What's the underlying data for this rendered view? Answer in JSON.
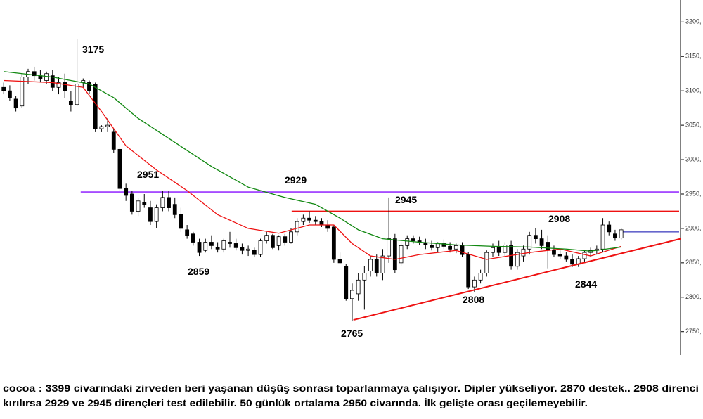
{
  "chart_data": {
    "type": "candlestick",
    "ylim": [
      2716,
      3232
    ],
    "xlim": [
      -0.6,
      110.7
    ],
    "yticks": [
      {
        "value": 2750,
        "label": "2750,"
      },
      {
        "value": 2800,
        "label": "2800,"
      },
      {
        "value": 2850,
        "label": "2850,"
      },
      {
        "value": 2900,
        "label": "2900,"
      },
      {
        "value": 2950,
        "label": "2950,"
      },
      {
        "value": 3000,
        "label": "3000,"
      },
      {
        "value": 3050,
        "label": "3050,"
      },
      {
        "value": 3100,
        "label": "3100,"
      },
      {
        "value": 3150,
        "label": "3150,"
      },
      {
        "value": 3200,
        "label": "3200,"
      }
    ],
    "ohlc": [
      [
        3105,
        3112,
        3095,
        3100
      ],
      [
        3100,
        3108,
        3085,
        3090
      ],
      [
        3088,
        3092,
        3070,
        3075
      ],
      [
        3078,
        3125,
        3075,
        3120
      ],
      [
        3120,
        3132,
        3110,
        3128
      ],
      [
        3128,
        3135,
        3115,
        3122
      ],
      [
        3122,
        3130,
        3112,
        3118
      ],
      [
        3115,
        3128,
        3110,
        3125
      ],
      [
        3122,
        3130,
        3100,
        3105
      ],
      [
        3105,
        3120,
        3095,
        3112
      ],
      [
        3112,
        3125,
        3090,
        3100
      ],
      [
        3085,
        3100,
        3070,
        3080
      ],
      [
        3080,
        3175,
        3078,
        3110
      ],
      [
        3112,
        3118,
        3105,
        3115
      ],
      [
        3112,
        3115,
        3095,
        3100
      ],
      [
        3110,
        3112,
        3040,
        3045
      ],
      [
        3045,
        3050,
        3040,
        3048
      ],
      [
        3048,
        3060,
        3040,
        3050
      ],
      [
        3040,
        3045,
        3010,
        3015
      ],
      [
        3015,
        3018,
        2955,
        2958
      ],
      [
        2958,
        2965,
        2940,
        2948
      ],
      [
        2950,
        2955,
        2920,
        2925
      ],
      [
        2925,
        2945,
        2918,
        2940
      ],
      [
        2938,
        2950,
        2930,
        2935
      ],
      [
        2930,
        2940,
        2905,
        2910
      ],
      [
        2910,
        2935,
        2900,
        2930
      ],
      [
        2930,
        2955,
        2925,
        2945
      ],
      [
        2945,
        2955,
        2925,
        2930
      ],
      [
        2935,
        2945,
        2915,
        2920
      ],
      [
        2920,
        2930,
        2895,
        2900
      ],
      [
        2898,
        2905,
        2885,
        2890
      ],
      [
        2892,
        2895,
        2875,
        2880
      ],
      [
        2880,
        2885,
        2860,
        2865
      ],
      [
        2868,
        2885,
        2865,
        2880
      ],
      [
        2880,
        2890,
        2870,
        2875
      ],
      [
        2872,
        2880,
        2865,
        2870
      ],
      [
        2870,
        2885,
        2865,
        2882
      ],
      [
        2880,
        2895,
        2872,
        2878
      ],
      [
        2878,
        2885,
        2868,
        2872
      ],
      [
        2872,
        2878,
        2862,
        2868
      ],
      [
        2868,
        2875,
        2860,
        2870
      ],
      [
        2868,
        2872,
        2858,
        2862
      ],
      [
        2862,
        2885,
        2858,
        2882
      ],
      [
        2882,
        2895,
        2878,
        2890
      ],
      [
        2890,
        2892,
        2870,
        2872
      ],
      [
        2875,
        2890,
        2868,
        2888
      ],
      [
        2888,
        2892,
        2875,
        2880
      ],
      [
        2880,
        2900,
        2878,
        2895
      ],
      [
        2895,
        2915,
        2890,
        2910
      ],
      [
        2910,
        2920,
        2905,
        2915
      ],
      [
        2915,
        2925,
        2908,
        2912
      ],
      [
        2912,
        2918,
        2905,
        2910
      ],
      [
        2910,
        2915,
        2902,
        2905
      ],
      [
        2905,
        2912,
        2895,
        2900
      ],
      [
        2902,
        2905,
        2850,
        2855
      ],
      [
        2855,
        2865,
        2848,
        2850
      ],
      [
        2845,
        2848,
        2795,
        2798
      ],
      [
        2798,
        2820,
        2765,
        2810
      ],
      [
        2805,
        2835,
        2795,
        2825
      ],
      [
        2825,
        2845,
        2782,
        2835
      ],
      [
        2838,
        2860,
        2830,
        2855
      ],
      [
        2855,
        2862,
        2830,
        2835
      ],
      [
        2835,
        2870,
        2825,
        2860
      ],
      [
        2860,
        2945,
        2850,
        2885
      ],
      [
        2885,
        2892,
        2835,
        2840
      ],
      [
        2850,
        2880,
        2845,
        2875
      ],
      [
        2875,
        2890,
        2870,
        2885
      ],
      [
        2885,
        2890,
        2878,
        2882
      ],
      [
        2882,
        2888,
        2876,
        2880
      ],
      [
        2878,
        2885,
        2870,
        2876
      ],
      [
        2876,
        2882,
        2868,
        2872
      ],
      [
        2872,
        2880,
        2866,
        2878
      ],
      [
        2878,
        2884,
        2870,
        2874
      ],
      [
        2874,
        2880,
        2865,
        2870
      ],
      [
        2870,
        2878,
        2864,
        2875
      ],
      [
        2875,
        2880,
        2858,
        2862
      ],
      [
        2862,
        2866,
        2812,
        2815
      ],
      [
        2815,
        2830,
        2808,
        2825
      ],
      [
        2825,
        2840,
        2820,
        2835
      ],
      [
        2835,
        2868,
        2830,
        2865
      ],
      [
        2865,
        2878,
        2858,
        2872
      ],
      [
        2872,
        2882,
        2860,
        2865
      ],
      [
        2865,
        2880,
        2860,
        2876
      ],
      [
        2876,
        2882,
        2840,
        2845
      ],
      [
        2845,
        2870,
        2840,
        2865
      ],
      [
        2860,
        2875,
        2852,
        2870
      ],
      [
        2870,
        2895,
        2862,
        2890
      ],
      [
        2890,
        2900,
        2878,
        2885
      ],
      [
        2885,
        2898,
        2870,
        2875
      ],
      [
        2880,
        2890,
        2842,
        2868
      ],
      [
        2868,
        2875,
        2858,
        2862
      ],
      [
        2862,
        2868,
        2855,
        2860
      ],
      [
        2860,
        2866,
        2852,
        2855
      ],
      [
        2855,
        2862,
        2844,
        2848
      ],
      [
        2848,
        2860,
        2844,
        2856
      ],
      [
        2856,
        2868,
        2852,
        2865
      ],
      [
        2865,
        2872,
        2858,
        2868
      ],
      [
        2868,
        2875,
        2862,
        2870
      ],
      [
        2870,
        2915,
        2866,
        2905
      ],
      [
        2905,
        2910,
        2890,
        2895
      ],
      [
        2892,
        2898,
        2882,
        2886
      ],
      [
        2886,
        2900,
        2884,
        2898
      ]
    ],
    "up_color": "#ffffff",
    "down_color": "#000000",
    "series": [
      {
        "color": "#ee1111",
        "x": [
          0,
          8,
          13,
          16,
          20,
          25,
          30,
          35,
          40,
          45,
          50,
          54,
          57,
          60,
          64,
          68,
          74,
          79,
          86,
          91,
          96,
          101
        ],
        "values": [
          3115,
          3112,
          3105,
          3070,
          3020,
          2985,
          2955,
          2920,
          2900,
          2893,
          2905,
          2905,
          2878,
          2860,
          2855,
          2862,
          2868,
          2855,
          2865,
          2870,
          2860,
          2874
        ]
      },
      {
        "color": "#118811",
        "x": [
          0,
          8,
          14,
          18,
          22,
          28,
          34,
          40,
          46,
          51,
          55,
          58,
          62,
          68,
          74,
          80,
          86,
          92,
          96,
          101
        ],
        "values": [
          3128,
          3120,
          3110,
          3090,
          3060,
          3025,
          2990,
          2960,
          2945,
          2935,
          2915,
          2898,
          2885,
          2880,
          2876,
          2874,
          2873,
          2870,
          2867,
          2873
        ]
      }
    ],
    "levels": [
      {
        "value": 2953,
        "from": 12.6,
        "color": "#9933ff"
      },
      {
        "value": 2925,
        "from": 47.1,
        "color": "#ee1111"
      },
      {
        "value": 2895,
        "from": 101.1,
        "color": "#6666cc"
      }
    ],
    "trend": {
      "x": [
        57.2,
        110.7
      ],
      "y": [
        2767,
        2885
      ],
      "color": "#ee1111"
    },
    "annotations": [
      "3175",
      "2951",
      "2929",
      "2945",
      "2908",
      "2859",
      "2765",
      "2808",
      "2844"
    ],
    "caption": [
      "cocoa : 3399 civarındaki zirveden beri yaşanan düşüş sonrası toparlanmaya çalışıyor. Dipler yükseliyor. 2870 destek.. 2908 direnci",
      "kırılırsa 2929 ve 2945 dirençleri test edilebilir. 50 günlük ortalama 2950 civarında. İlk gelişte orası geçilemeyebilir."
    ]
  }
}
